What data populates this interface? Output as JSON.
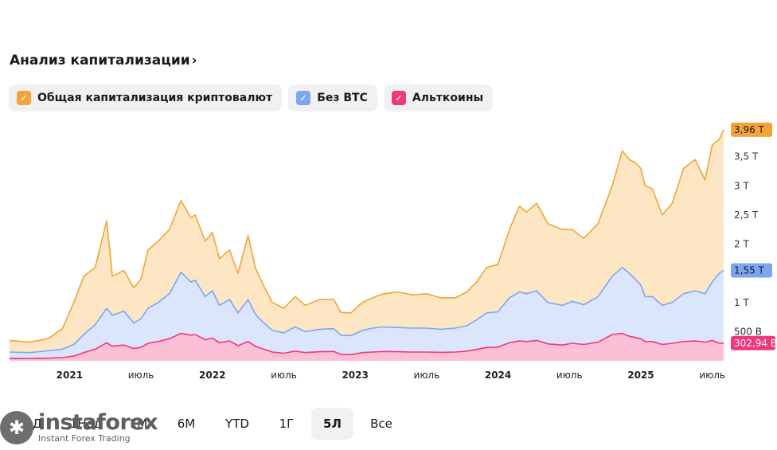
{
  "header": {
    "title": "Анализ капитализации",
    "chevron": "›"
  },
  "legend": [
    {
      "label": "Общая капитализация криптовалют",
      "color": "#f5a338",
      "icon": "check-icon"
    },
    {
      "label": "Без BTC",
      "color": "#7ca6f2",
      "icon": "check-icon"
    },
    {
      "label": "Альткоины",
      "color": "#f0387a",
      "icon": "check-icon"
    }
  ],
  "ranges": {
    "items": [
      "1Д",
      "1Нед",
      "1М",
      "6М",
      "YTD",
      "1Г",
      "5Л",
      "Все"
    ],
    "active": "5Л"
  },
  "watermark": {
    "name": "instaforex",
    "tagline": "Instant Forex Trading"
  },
  "chart_data": {
    "type": "area",
    "x_tick_labels": [
      "2021",
      "июль",
      "2022",
      "июль",
      "2023",
      "июль",
      "2024",
      "июль",
      "2025",
      "июль"
    ],
    "x_tick_times": [
      2021.0,
      2021.5,
      2022.0,
      2022.5,
      2023.0,
      2023.5,
      2024.0,
      2024.5,
      2025.0,
      2025.5
    ],
    "x_range": [
      2020.58,
      2025.58
    ],
    "y_ticks": [
      {
        "value": 500,
        "label": "500 B"
      },
      {
        "value": 1000,
        "label": "1 T"
      },
      {
        "value": 1500,
        "label": "1,5 T"
      },
      {
        "value": 2000,
        "label": "2 T"
      },
      {
        "value": 2500,
        "label": "2,5 T"
      },
      {
        "value": 3000,
        "label": "3 T"
      },
      {
        "value": 3500,
        "label": "3,5 T"
      }
    ],
    "y_unit": "billion USD",
    "ylim": [
      0,
      4000
    ],
    "last_value_badges": [
      {
        "series": "Общая капитализация криптовалют",
        "label": "3,96 T",
        "value": 3960
      },
      {
        "series": "Без BTC",
        "label": "1,55 T",
        "value": 1550
      },
      {
        "series": "Альткоины",
        "label": "302,94 B",
        "value": 302.94
      }
    ],
    "series": [
      {
        "name": "Общая капитализация криптовалют",
        "color": "#f5a338",
        "fill": "#fde6c4",
        "x": [
          2020.58,
          2020.72,
          2020.85,
          2020.95,
          2021.03,
          2021.1,
          2021.18,
          2021.26,
          2021.3,
          2021.38,
          2021.45,
          2021.5,
          2021.55,
          2021.62,
          2021.7,
          2021.78,
          2021.85,
          2021.88,
          2021.95,
          2022.0,
          2022.05,
          2022.12,
          2022.18,
          2022.25,
          2022.3,
          2022.36,
          2022.42,
          2022.5,
          2022.58,
          2022.65,
          2022.75,
          2022.85,
          2022.9,
          2022.97,
          2023.05,
          2023.12,
          2023.2,
          2023.3,
          2023.4,
          2023.5,
          2023.6,
          2023.7,
          2023.78,
          2023.85,
          2023.92,
          2024.0,
          2024.08,
          2024.15,
          2024.2,
          2024.27,
          2024.35,
          2024.45,
          2024.52,
          2024.6,
          2024.7,
          2024.8,
          2024.87,
          2024.92,
          2024.96,
          2025.0,
          2025.03,
          2025.08,
          2025.15,
          2025.22,
          2025.3,
          2025.38,
          2025.45,
          2025.5,
          2025.55,
          2025.58
        ],
        "y": [
          350,
          320,
          380,
          550,
          1000,
          1450,
          1600,
          2400,
          1450,
          1550,
          1250,
          1400,
          1900,
          2050,
          2250,
          2750,
          2450,
          2500,
          2050,
          2200,
          1750,
          1900,
          1500,
          2150,
          1600,
          1280,
          1000,
          900,
          1100,
          950,
          1050,
          1050,
          830,
          820,
          1000,
          1080,
          1150,
          1180,
          1130,
          1150,
          1080,
          1080,
          1180,
          1350,
          1600,
          1650,
          2250,
          2650,
          2550,
          2700,
          2350,
          2250,
          2250,
          2100,
          2350,
          3000,
          3600,
          3450,
          3400,
          3300,
          3000,
          2950,
          2500,
          2700,
          3300,
          3450,
          3100,
          3700,
          3800,
          3960
        ]
      },
      {
        "name": "Без BTC",
        "color": "#7ca6f2",
        "fill": "#dbe6fc",
        "x": [
          2020.58,
          2020.72,
          2020.85,
          2020.95,
          2021.03,
          2021.1,
          2021.18,
          2021.26,
          2021.3,
          2021.38,
          2021.45,
          2021.5,
          2021.55,
          2021.62,
          2021.7,
          2021.78,
          2021.85,
          2021.88,
          2021.95,
          2022.0,
          2022.05,
          2022.12,
          2022.18,
          2022.25,
          2022.3,
          2022.36,
          2022.42,
          2022.5,
          2022.58,
          2022.65,
          2022.75,
          2022.85,
          2022.9,
          2022.97,
          2023.05,
          2023.12,
          2023.2,
          2023.3,
          2023.4,
          2023.5,
          2023.6,
          2023.7,
          2023.78,
          2023.85,
          2023.92,
          2024.0,
          2024.08,
          2024.15,
          2024.2,
          2024.27,
          2024.35,
          2024.45,
          2024.52,
          2024.6,
          2024.7,
          2024.8,
          2024.87,
          2024.92,
          2024.96,
          2025.0,
          2025.03,
          2025.08,
          2025.15,
          2025.22,
          2025.3,
          2025.38,
          2025.45,
          2025.5,
          2025.55,
          2025.58
        ],
        "y": [
          150,
          140,
          170,
          200,
          280,
          450,
          620,
          900,
          780,
          850,
          650,
          720,
          900,
          1000,
          1150,
          1520,
          1350,
          1380,
          1100,
          1200,
          950,
          1050,
          820,
          1050,
          800,
          650,
          520,
          480,
          580,
          500,
          540,
          550,
          440,
          430,
          520,
          560,
          580,
          570,
          560,
          560,
          540,
          560,
          600,
          700,
          820,
          840,
          1080,
          1180,
          1150,
          1200,
          1000,
          950,
          1020,
          960,
          1100,
          1450,
          1600,
          1500,
          1400,
          1300,
          1100,
          1100,
          950,
          1000,
          1150,
          1200,
          1150,
          1350,
          1500,
          1550
        ]
      },
      {
        "name": "Альткоины",
        "color": "#f0387a",
        "fill": "#fbc0d6",
        "x": [
          2020.58,
          2020.72,
          2020.85,
          2020.95,
          2021.03,
          2021.1,
          2021.18,
          2021.26,
          2021.3,
          2021.38,
          2021.45,
          2021.5,
          2021.55,
          2021.62,
          2021.7,
          2021.78,
          2021.85,
          2021.88,
          2021.95,
          2022.0,
          2022.05,
          2022.12,
          2022.18,
          2022.25,
          2022.3,
          2022.36,
          2022.42,
          2022.5,
          2022.58,
          2022.65,
          2022.75,
          2022.85,
          2022.9,
          2022.97,
          2023.05,
          2023.12,
          2023.2,
          2023.3,
          2023.4,
          2023.5,
          2023.6,
          2023.7,
          2023.78,
          2023.85,
          2023.92,
          2024.0,
          2024.08,
          2024.15,
          2024.2,
          2024.27,
          2024.35,
          2024.45,
          2024.52,
          2024.6,
          2024.7,
          2024.8,
          2024.87,
          2024.92,
          2024.96,
          2025.0,
          2025.03,
          2025.08,
          2025.15,
          2025.22,
          2025.3,
          2025.38,
          2025.45,
          2025.5,
          2025.55,
          2025.58
        ],
        "y": [
          40,
          38,
          45,
          55,
          80,
          140,
          200,
          310,
          250,
          270,
          210,
          230,
          300,
          330,
          380,
          470,
          440,
          450,
          360,
          390,
          310,
          340,
          260,
          330,
          250,
          200,
          150,
          130,
          165,
          140,
          155,
          160,
          110,
          105,
          140,
          150,
          160,
          155,
          150,
          150,
          145,
          150,
          165,
          195,
          230,
          235,
          310,
          340,
          330,
          350,
          290,
          270,
          300,
          280,
          320,
          450,
          470,
          420,
          400,
          380,
          330,
          330,
          280,
          300,
          330,
          340,
          320,
          350,
          300,
          303
        ]
      }
    ]
  }
}
